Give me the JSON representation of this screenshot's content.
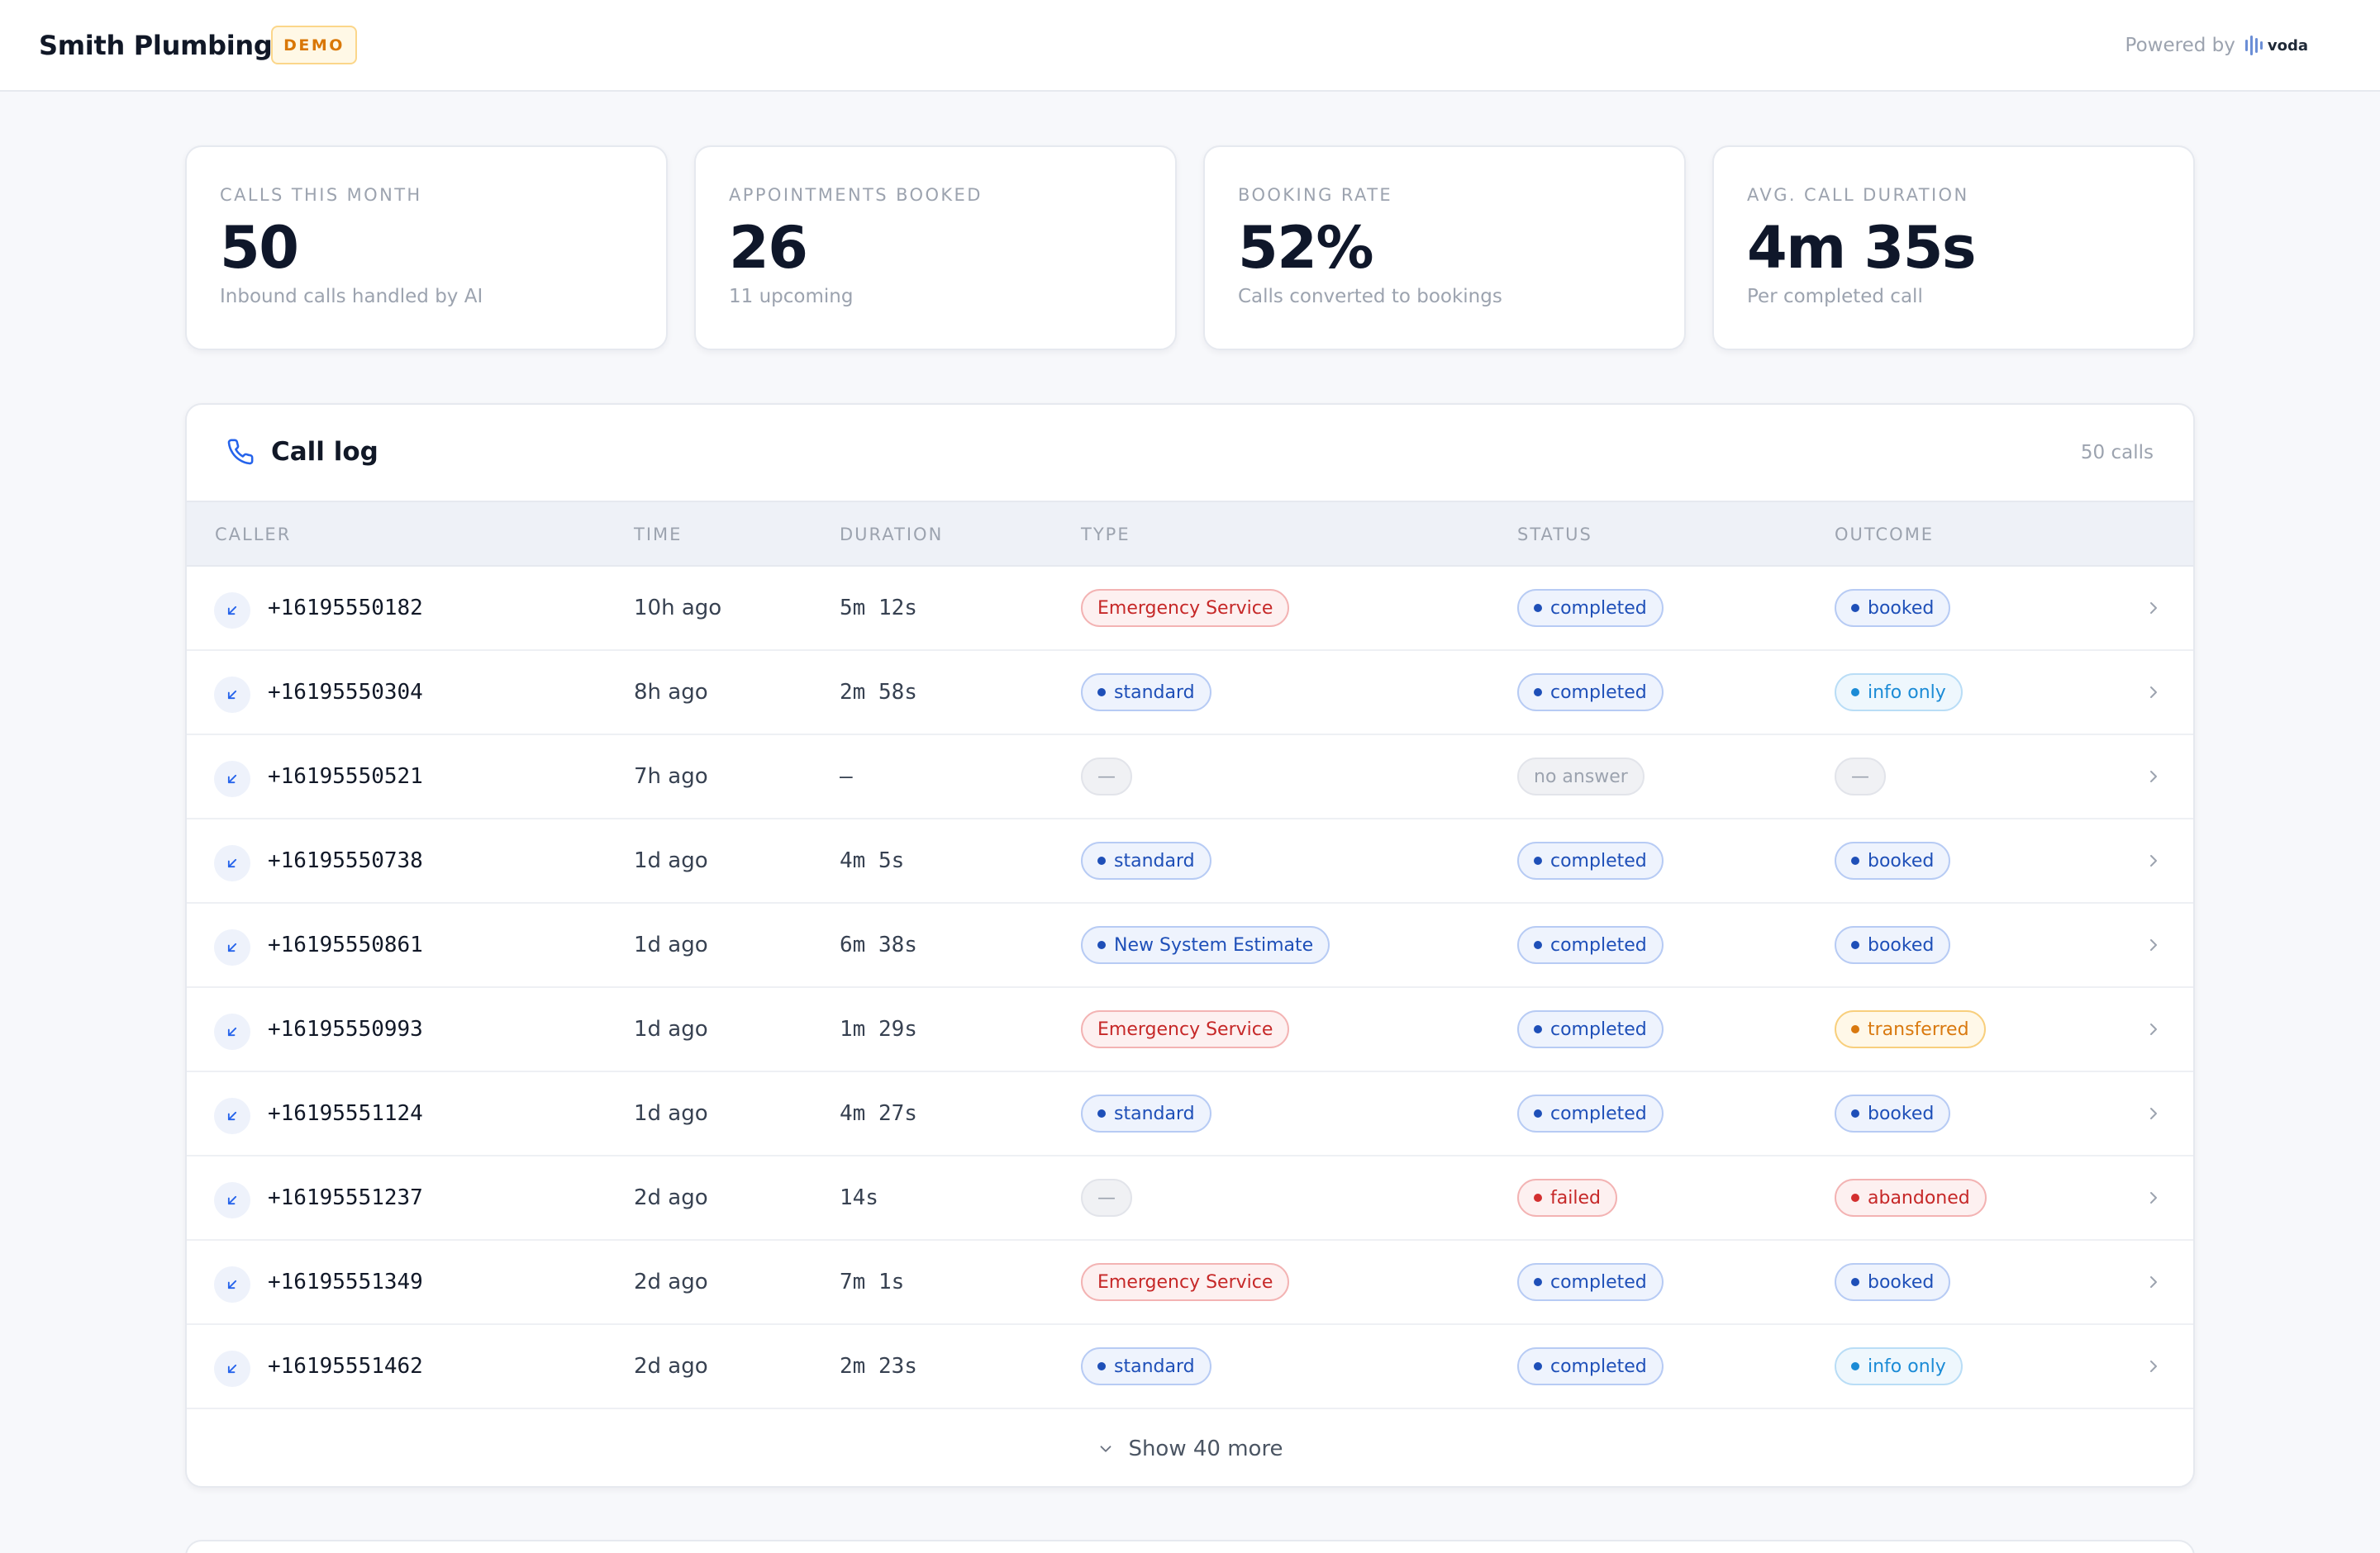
{
  "header": {
    "business_name": "Smith Plumbing",
    "badge": "DEMO",
    "powered_by": "Powered by",
    "logo_text": "voda"
  },
  "stats": [
    {
      "label": "CALLS THIS MONTH",
      "value": "50",
      "sub": "Inbound calls handled by AI"
    },
    {
      "label": "APPOINTMENTS BOOKED",
      "value": "26",
      "sub": "11 upcoming"
    },
    {
      "label": "BOOKING RATE",
      "value": "52%",
      "sub": "Calls converted to bookings"
    },
    {
      "label": "AVG. CALL DURATION",
      "value": "4m 35s",
      "sub": "Per completed call"
    }
  ],
  "call_log": {
    "title": "Call log",
    "count": "50 calls",
    "columns": [
      "CALLER",
      "TIME",
      "DURATION",
      "TYPE",
      "STATUS",
      "OUTCOME"
    ],
    "rows": [
      {
        "caller": "+16195550182",
        "time": "10h ago",
        "duration": "5m 12s",
        "type": "Emergency Service",
        "type_style": "red",
        "status": "completed",
        "status_style": "blue",
        "outcome": "booked",
        "outcome_style": "blue"
      },
      {
        "caller": "+16195550304",
        "time": "8h ago",
        "duration": "2m 58s",
        "type": "standard",
        "type_style": "blue",
        "status": "completed",
        "status_style": "blue",
        "outcome": "info only",
        "outcome_style": "sky"
      },
      {
        "caller": "+16195550521",
        "time": "7h ago",
        "duration": "—",
        "type": "—",
        "type_style": "gray",
        "status": "no answer",
        "status_style": "gray",
        "outcome": "—",
        "outcome_style": "gray"
      },
      {
        "caller": "+16195550738",
        "time": "1d ago",
        "duration": "4m 5s",
        "type": "standard",
        "type_style": "blue",
        "status": "completed",
        "status_style": "blue",
        "outcome": "booked",
        "outcome_style": "blue"
      },
      {
        "caller": "+16195550861",
        "time": "1d ago",
        "duration": "6m 38s",
        "type": "New System Estimate",
        "type_style": "blue",
        "status": "completed",
        "status_style": "blue",
        "outcome": "booked",
        "outcome_style": "blue"
      },
      {
        "caller": "+16195550993",
        "time": "1d ago",
        "duration": "1m 29s",
        "type": "Emergency Service",
        "type_style": "red",
        "status": "completed",
        "status_style": "blue",
        "outcome": "transferred",
        "outcome_style": "orange"
      },
      {
        "caller": "+16195551124",
        "time": "1d ago",
        "duration": "4m 27s",
        "type": "standard",
        "type_style": "blue",
        "status": "completed",
        "status_style": "blue",
        "outcome": "booked",
        "outcome_style": "blue"
      },
      {
        "caller": "+16195551237",
        "time": "2d ago",
        "duration": "14s",
        "type": "—",
        "type_style": "gray",
        "status": "failed",
        "status_style": "redd",
        "outcome": "abandoned",
        "outcome_style": "redd"
      },
      {
        "caller": "+16195551349",
        "time": "2d ago",
        "duration": "7m 1s",
        "type": "Emergency Service",
        "type_style": "red",
        "status": "completed",
        "status_style": "blue",
        "outcome": "booked",
        "outcome_style": "blue"
      },
      {
        "caller": "+16195551462",
        "time": "2d ago",
        "duration": "2m 23s",
        "type": "standard",
        "type_style": "blue",
        "status": "completed",
        "status_style": "blue",
        "outcome": "info only",
        "outcome_style": "sky"
      }
    ],
    "show_more": "Show 40 more"
  },
  "icons": {
    "call_direction": "arrow-down-left-icon",
    "title": "phone-icon",
    "row_action": "chevron-right-icon",
    "show_more": "chevron-down-icon"
  }
}
